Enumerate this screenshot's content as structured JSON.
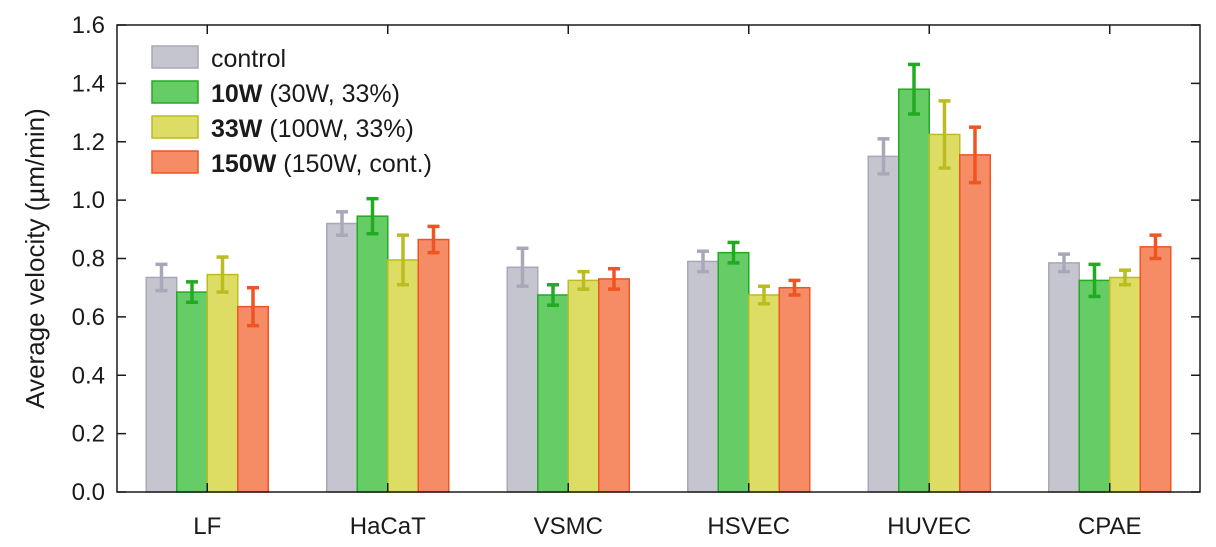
{
  "chart_data": {
    "type": "bar",
    "title": "",
    "xlabel": "",
    "ylabel": "Average velocity (µm/min)",
    "ylim": [
      0,
      1.6
    ],
    "yticks": [
      "0.0",
      "0.2",
      "0.4",
      "0.6",
      "0.8",
      "1.0",
      "1.2",
      "1.4",
      "1.6"
    ],
    "categories": [
      "LF",
      "HaCaT",
      "VSMC",
      "HSVEC",
      "HUVEC",
      "CPAE"
    ],
    "legend_position": "top-left",
    "grid": false,
    "series": [
      {
        "name": "control",
        "name_bold": "control",
        "name_rest": "",
        "fill": "#c5c5d0",
        "stroke": "#a8a8b8",
        "values": [
          0.735,
          0.92,
          0.77,
          0.79,
          1.15,
          0.785
        ],
        "errors": [
          0.045,
          0.04,
          0.065,
          0.035,
          0.06,
          0.03
        ]
      },
      {
        "name": "10W (30W, 33%)",
        "name_bold": "10W",
        "name_rest": " (30W, 33%)",
        "fill": "#66cc66",
        "stroke": "#22aa22",
        "values": [
          0.685,
          0.945,
          0.675,
          0.82,
          1.38,
          0.725
        ],
        "errors": [
          0.035,
          0.06,
          0.035,
          0.035,
          0.085,
          0.055
        ]
      },
      {
        "name": "33W (100W, 33%)",
        "name_bold": "33W",
        "name_rest": " (100W, 33%)",
        "fill": "#dddd66",
        "stroke": "#bbbb22",
        "values": [
          0.745,
          0.795,
          0.725,
          0.675,
          1.225,
          0.735
        ],
        "errors": [
          0.06,
          0.085,
          0.03,
          0.03,
          0.115,
          0.025
        ]
      },
      {
        "name": "150W (150W, cont.)",
        "name_bold": "150W",
        "name_rest": " (150W, cont.)",
        "fill": "#f58c66",
        "stroke": "#ee5522",
        "values": [
          0.635,
          0.865,
          0.73,
          0.7,
          1.155,
          0.84
        ],
        "errors": [
          0.065,
          0.045,
          0.035,
          0.025,
          0.095,
          0.04
        ]
      }
    ]
  }
}
